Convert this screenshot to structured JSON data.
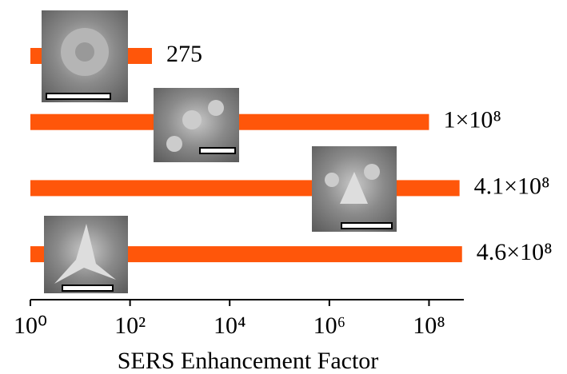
{
  "chart_data": {
    "type": "bar",
    "orientation": "horizontal",
    "values": [
      275,
      100000000,
      410000000,
      460000000
    ],
    "value_labels": [
      "275",
      "1×10⁸",
      "4.1×10⁸",
      "4.6×10⁸"
    ],
    "color": "#ff560a",
    "xlabel": "SERS Enhancement Factor",
    "xscale": "log",
    "xlim": [
      1,
      500000000
    ],
    "xticks": [
      {
        "value": 1,
        "label": "10⁰"
      },
      {
        "value": 100,
        "label": "10²"
      },
      {
        "value": 10000,
        "label": "10⁴"
      },
      {
        "value": 1000000,
        "label": "10⁶"
      },
      {
        "value": 100000000,
        "label": "10⁸"
      }
    ]
  }
}
